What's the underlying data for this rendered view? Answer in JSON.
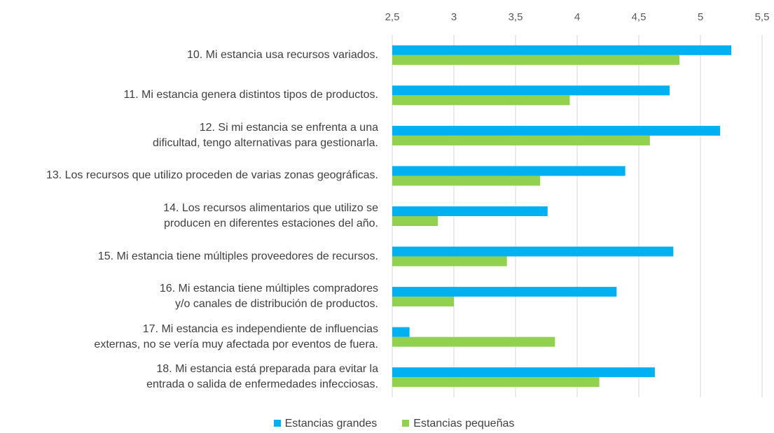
{
  "chart_data": {
    "type": "bar",
    "orientation": "horizontal",
    "categories": [
      "10. Mi estancia usa recursos variados.",
      "11. Mi estancia genera distintos tipos de productos.",
      "12. Si mi estancia se enfrenta a una dificultad, tengo alternativas para gestionarla.",
      "13. Los recursos que utilizo proceden de varias zonas geográficas.",
      "14. Los recursos alimentarios que utilizo se producen en diferentes estaciones del año.",
      "15. Mi estancia tiene múltiples proveedores de recursos.",
      "16. Mi estancia tiene múltiples compradores y/o canales de distribución de productos.",
      "17. Mi estancia es independiente de influencias externas, no se vería muy afectada por eventos de fuera.",
      "18. Mi estancia está preparada para evitar la entrada o salida de enfermedades infecciosas."
    ],
    "series": [
      {
        "name": "Estancias grandes",
        "color": "#00b0f0",
        "values": [
          5.25,
          4.75,
          5.16,
          4.39,
          3.76,
          4.78,
          4.32,
          2.64,
          4.63
        ]
      },
      {
        "name": "Estancias pequeñas",
        "color": "#92d050",
        "values": [
          4.83,
          3.94,
          4.59,
          3.7,
          2.87,
          3.43,
          3.0,
          3.82,
          4.18
        ]
      }
    ],
    "xlim": [
      2.5,
      5.5
    ],
    "xticks": [
      {
        "value": 2.5,
        "label": "2,5"
      },
      3,
      {
        "value": 3.5,
        "label": "3,5"
      },
      4,
      {
        "value": 4.5,
        "label": "4,5"
      },
      5,
      {
        "value": 5.5,
        "label": "5,5"
      }
    ],
    "grid": true,
    "legend": "bottom"
  }
}
